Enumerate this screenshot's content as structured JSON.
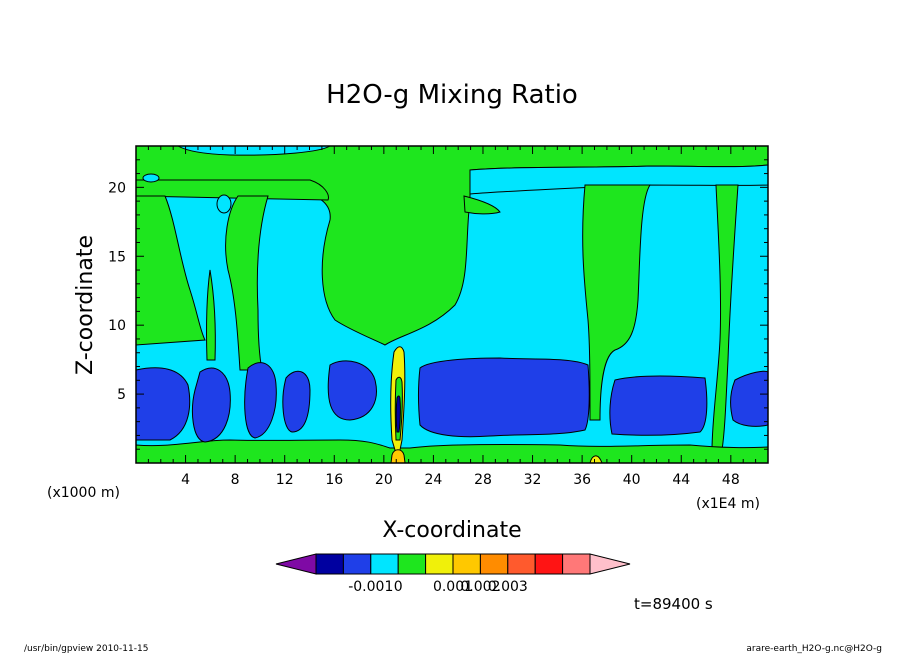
{
  "chart_data": {
    "type": "heatmap",
    "title": "H2O-g Mixing Ratio",
    "xlabel": "X-coordinate",
    "ylabel": "Z-coordinate",
    "x_unit_left": "(x1000 m)",
    "x_unit_right": "(x1E4 m)",
    "xlim": [
      0,
      51
    ],
    "ylim": [
      0,
      23
    ],
    "xticks": [
      "4",
      "8",
      "12",
      "16",
      "20",
      "24",
      "28",
      "32",
      "36",
      "40",
      "44",
      "48"
    ],
    "yticks": [
      "5",
      "10",
      "15",
      "20"
    ],
    "colorbar": {
      "colors": [
        "#7f0aa5",
        "#0000a0",
        "#1f3fe8",
        "#00e5ff",
        "#1ee61e",
        "#f0f00a",
        "#ffc800",
        "#ff8c00",
        "#ff5a2d",
        "#ff1414",
        "#ff7878",
        "#ffc0cb"
      ],
      "labels": [
        "-0.001",
        "0",
        "0.001",
        "0.002",
        "0.003"
      ]
    },
    "time_label": "t=89400 s",
    "footer_left": "/usr/bin/gpview  2010-11-15",
    "footer_right": "arare-earth_H2O-g.nc@H2O-g"
  }
}
